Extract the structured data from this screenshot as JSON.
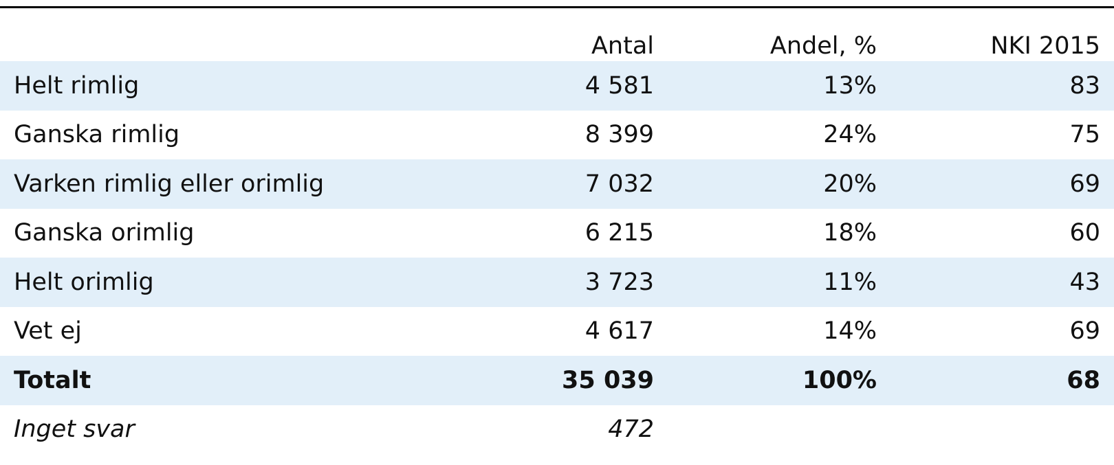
{
  "table": {
    "headers": {
      "label": "",
      "antal": "Antal",
      "andel": "Andel, %",
      "nki": "NKI 2015"
    },
    "rows": [
      {
        "label": "Helt rimlig",
        "antal": "4 581",
        "andel": "13%",
        "nki": "83"
      },
      {
        "label": "Ganska rimlig",
        "antal": "8 399",
        "andel": "24%",
        "nki": "75"
      },
      {
        "label": "Varken rimlig eller orimlig",
        "antal": "7 032",
        "andel": "20%",
        "nki": "69"
      },
      {
        "label": "Ganska orimlig",
        "antal": "6 215",
        "andel": "18%",
        "nki": "60"
      },
      {
        "label": "Helt orimlig",
        "antal": "3 723",
        "andel": "11%",
        "nki": "43"
      },
      {
        "label": "Vet ej",
        "antal": "4 617",
        "andel": "14%",
        "nki": "69"
      }
    ],
    "total": {
      "label": "Totalt",
      "antal": "35 039",
      "andel": "100%",
      "nki": "68"
    },
    "no_answer": {
      "label": "Inget svar",
      "antal": "472"
    }
  },
  "colors": {
    "row_shade": "#e2eff9",
    "text": "#111111",
    "rule": "#000000"
  }
}
